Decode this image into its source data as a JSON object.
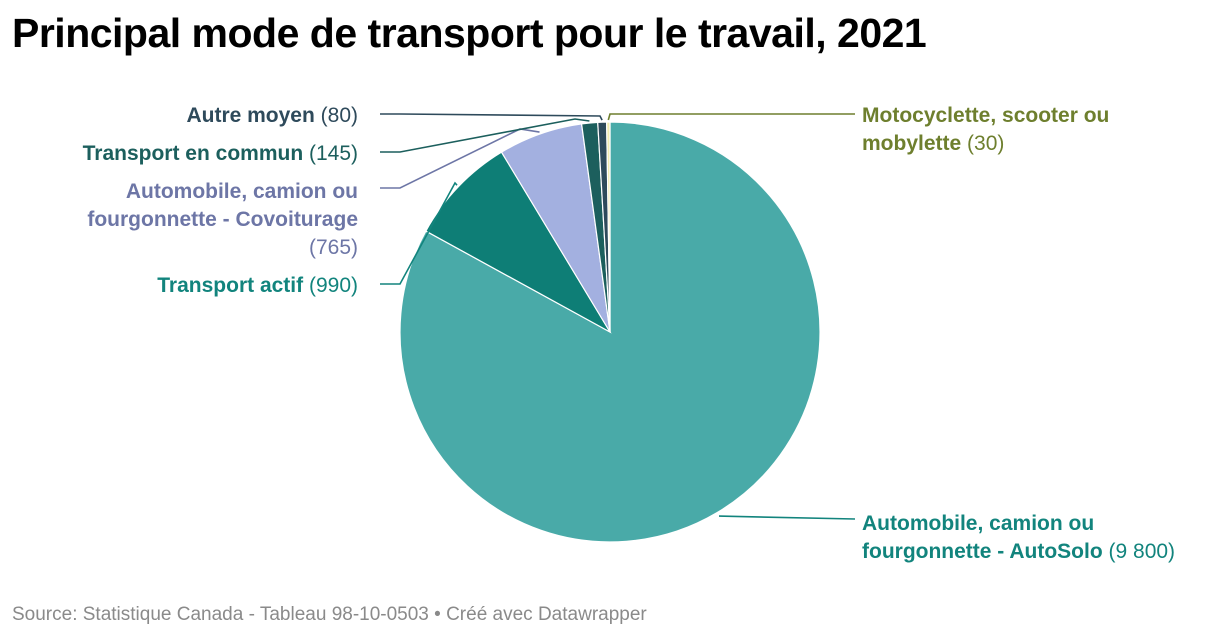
{
  "title": "Principal mode de transport pour le travail, 2021",
  "source": "Source: Statistique Canada - Tableau 98-10-0503 • Créé avec Datawrapper",
  "chart_data": {
    "type": "pie",
    "title": "Principal mode de transport pour le travail, 2021",
    "slices": [
      {
        "name": "Automobile, camion ou fourgonnette - AutoSolo",
        "value": 9800,
        "display": "(9 800)",
        "color": "#49aaa8",
        "label_lines": [
          "Automobile, camion ou",
          "fourgonnette - AutoSolo"
        ]
      },
      {
        "name": "Transport actif",
        "value": 990,
        "display": "(990)",
        "color": "#0e7e76",
        "label_lines": [
          "Transport actif"
        ]
      },
      {
        "name": "Automobile, camion ou fourgonnette - Covoiturage",
        "value": 765,
        "display": "(765)",
        "color": "#a3b0e0",
        "label_lines": [
          "Automobile, camion ou",
          "fourgonnette - Covoiturage"
        ]
      },
      {
        "name": "Transport en commun",
        "value": 145,
        "display": "(145)",
        "color": "#1c5f5d",
        "label_lines": [
          "Transport en commun"
        ]
      },
      {
        "name": "Autre moyen",
        "value": 80,
        "display": "(80)",
        "color": "#2e4a5b",
        "label_lines": [
          "Autre moyen"
        ]
      },
      {
        "name": "Motocyclette, scooter ou mobylette",
        "value": 30,
        "display": "(30)",
        "color": "#f0ebb0",
        "label_lines": [
          "Motocyclette, scooter ou",
          "mobylette"
        ]
      }
    ],
    "label_colors": {
      "Automobile, camion ou fourgonnette - AutoSolo": "#12847d",
      "Transport actif": "#12847d",
      "Automobile, camion ou fourgonnette - Covoiturage": "#6d76a6",
      "Transport en commun": "#1c5f5d",
      "Autre moyen": "#2e4a5b",
      "Motocyclette, scooter ou mobylette": "#6e7f2e"
    }
  }
}
